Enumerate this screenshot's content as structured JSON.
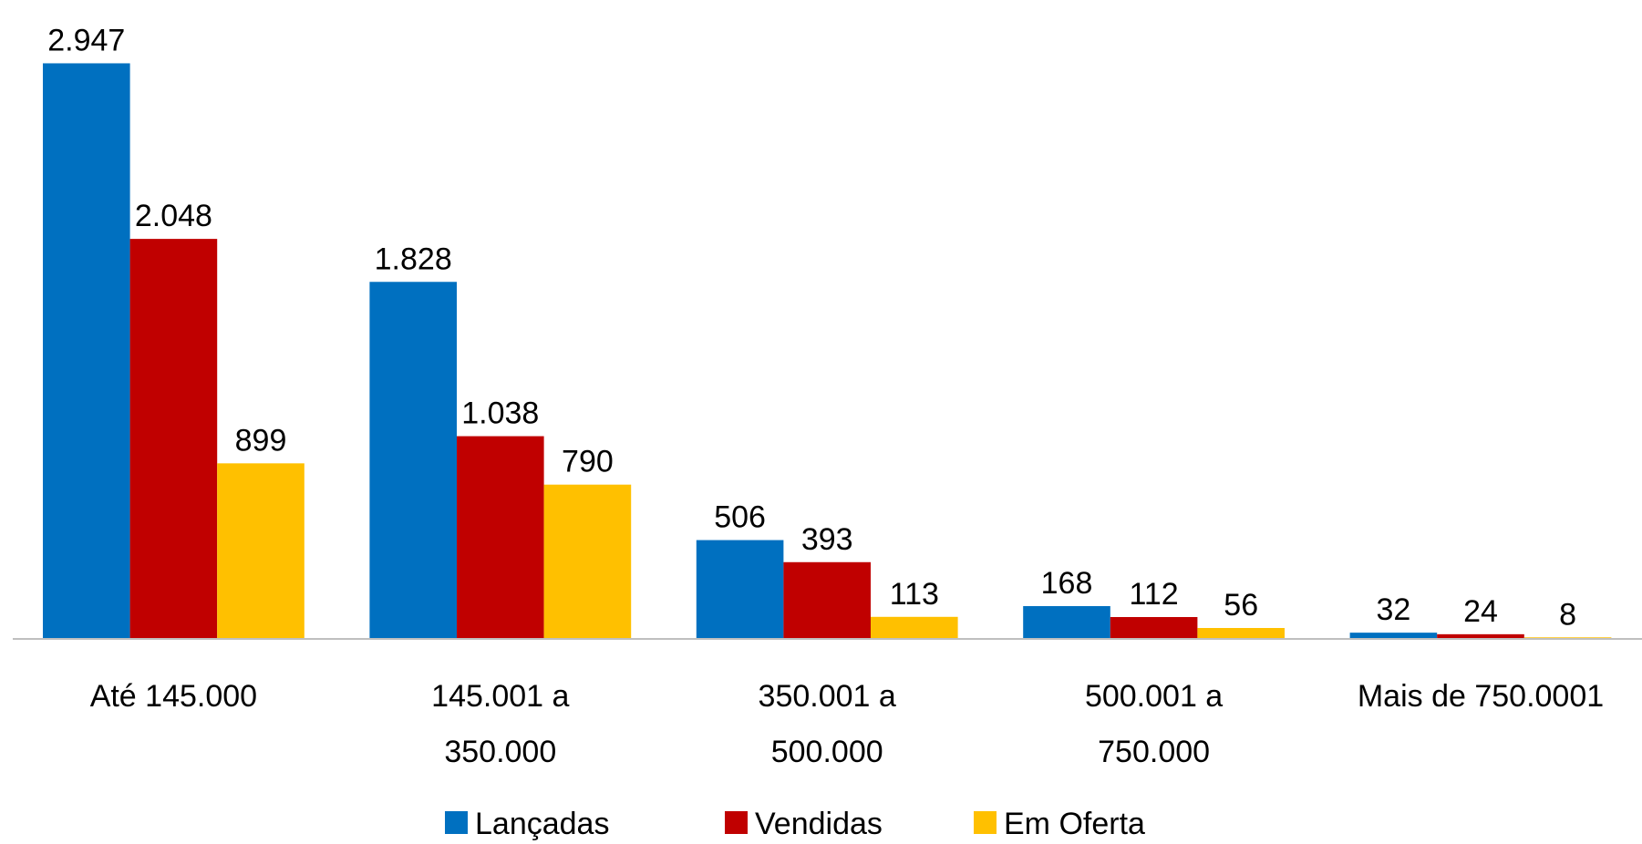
{
  "chart_data": {
    "type": "bar",
    "categories": [
      "Até 145.000",
      "145.001 a\n350.000",
      "350.001 a\n500.000",
      "500.001 a\n750.000",
      "Mais de 750.0001"
    ],
    "series": [
      {
        "name": "Lançadas",
        "color": "#0070c0",
        "values": [
          2947,
          1828,
          506,
          168,
          32
        ],
        "value_labels": [
          "2.947",
          "1.828",
          "506",
          "168",
          "32"
        ]
      },
      {
        "name": "Vendidas",
        "color": "#c00000",
        "values": [
          2048,
          1038,
          393,
          112,
          24
        ],
        "value_labels": [
          "2.048",
          "1.038",
          "393",
          "112",
          "24"
        ]
      },
      {
        "name": "Em Oferta",
        "color": "#ffc000",
        "values": [
          899,
          790,
          113,
          56,
          8
        ],
        "value_labels": [
          "899",
          "790",
          "113",
          "56",
          "8"
        ]
      }
    ],
    "legend": "bottom"
  }
}
